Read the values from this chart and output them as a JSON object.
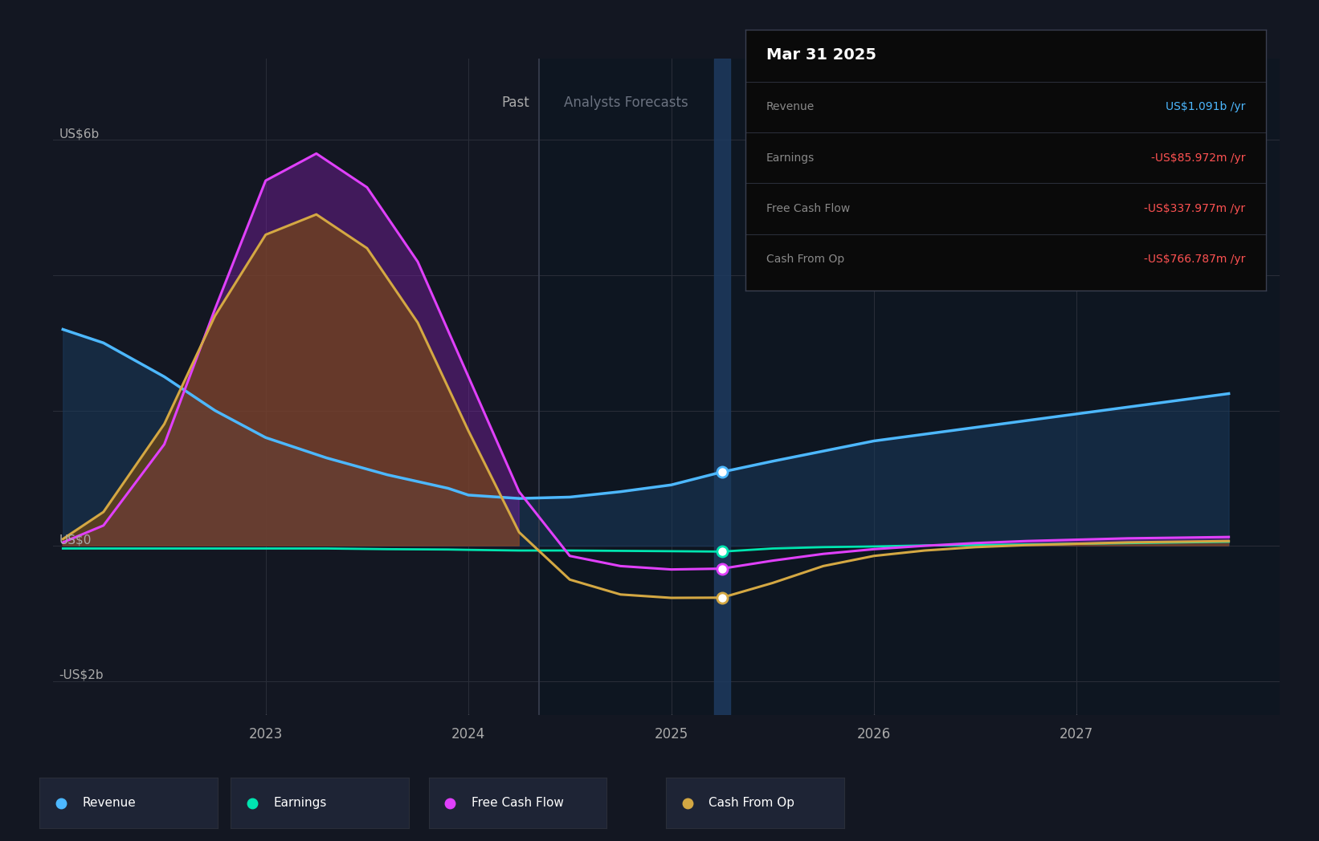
{
  "bg_color": "#131722",
  "forecast_bg_color": "#0e1621",
  "grid_color": "#2a2e39",
  "tooltip_title": "Mar 31 2025",
  "tooltip_items": [
    {
      "label": "Revenue",
      "value": "US$1.091b /yr",
      "value_color": "#4db8ff"
    },
    {
      "label": "Earnings",
      "value": "-US$85.972m /yr",
      "value_color": "#ff5252"
    },
    {
      "label": "Free Cash Flow",
      "value": "-US$337.977m /yr",
      "value_color": "#ff5252"
    },
    {
      "label": "Cash From Op",
      "value": "-US$766.787m /yr",
      "value_color": "#ff5252"
    }
  ],
  "ylabel_6b": "US$6b",
  "ylabel_0": "US$0",
  "ylabel_neg2b": "-US$2b",
  "past_label": "Past",
  "forecast_label": "Analysts Forecasts",
  "x_ticks": [
    "2023",
    "2024",
    "2025",
    "2026",
    "2027"
  ],
  "x_tick_positions": [
    2023.0,
    2024.0,
    2025.0,
    2026.0,
    2027.0
  ],
  "past_end": 2024.35,
  "marker_x": 2025.25,
  "x_min": 2021.95,
  "x_max": 2028.0,
  "y_min": -2500000000.0,
  "y_max": 7200000000.0,
  "revenue_color": "#4db8ff",
  "earnings_color": "#00e5b0",
  "fcf_color": "#e040fb",
  "cashop_color": "#d4a843",
  "revenue_fill_color": "#1a3a5c",
  "fcf_fill_color": "#7b1fa2",
  "cashop_fill_color": "#5c3a00",
  "overlap_fill_color": "#3d1a00",
  "revenue_x": [
    2022.0,
    2022.2,
    2022.5,
    2022.75,
    2023.0,
    2023.3,
    2023.6,
    2023.9,
    2024.0,
    2024.25,
    2024.5,
    2024.75,
    2025.0,
    2025.25,
    2025.5,
    2025.75,
    2026.0,
    2026.25,
    2026.5,
    2026.75,
    2027.0,
    2027.25,
    2027.5,
    2027.75
  ],
  "revenue_y": [
    3200000000.0,
    3000000000.0,
    2500000000.0,
    2000000000.0,
    1600000000.0,
    1300000000.0,
    1050000000.0,
    850000000.0,
    750000000.0,
    700000000.0,
    720000000.0,
    800000000.0,
    900000000.0,
    1091000000.0,
    1250000000.0,
    1400000000.0,
    1550000000.0,
    1650000000.0,
    1750000000.0,
    1850000000.0,
    1950000000.0,
    2050000000.0,
    2150000000.0,
    2250000000.0
  ],
  "earnings_x": [
    2022.0,
    2022.2,
    2022.5,
    2022.75,
    2023.0,
    2023.3,
    2023.6,
    2023.9,
    2024.0,
    2024.25,
    2024.5,
    2024.75,
    2025.0,
    2025.25,
    2025.5,
    2025.75,
    2026.0,
    2026.25,
    2026.5,
    2026.75,
    2027.0,
    2027.25,
    2027.5,
    2027.75
  ],
  "earnings_y": [
    -40000000.0,
    -40000000.0,
    -40000000.0,
    -40000000.0,
    -40000000.0,
    -40000000.0,
    -50000000.0,
    -55000000.0,
    -60000000.0,
    -70000000.0,
    -70000000.0,
    -75000000.0,
    -80000000.0,
    -86000000.0,
    -40000000.0,
    -20000000.0,
    -10000000.0,
    5000000.0,
    10000000.0,
    20000000.0,
    30000000.0,
    40000000.0,
    50000000.0,
    60000000.0
  ],
  "fcf_x": [
    2022.0,
    2022.2,
    2022.5,
    2022.75,
    2023.0,
    2023.25,
    2023.5,
    2023.75,
    2024.0,
    2024.25,
    2024.5,
    2024.75,
    2025.0,
    2025.25,
    2025.5,
    2025.75,
    2026.0,
    2026.25,
    2026.5,
    2026.75,
    2027.0,
    2027.25,
    2027.5,
    2027.75
  ],
  "fcf_y": [
    50000000.0,
    300000000.0,
    1500000000.0,
    3500000000.0,
    5400000000.0,
    5800000000.0,
    5300000000.0,
    4200000000.0,
    2500000000.0,
    800000000.0,
    -150000000.0,
    -300000000.0,
    -350000000.0,
    -338000000.0,
    -220000000.0,
    -120000000.0,
    -50000000.0,
    0.0,
    40000000.0,
    70000000.0,
    90000000.0,
    110000000.0,
    120000000.0,
    130000000.0
  ],
  "cashop_x": [
    2022.0,
    2022.2,
    2022.5,
    2022.75,
    2023.0,
    2023.25,
    2023.5,
    2023.75,
    2024.0,
    2024.25,
    2024.5,
    2024.75,
    2025.0,
    2025.25,
    2025.5,
    2025.75,
    2026.0,
    2026.25,
    2026.5,
    2026.75,
    2027.0,
    2027.25,
    2027.5,
    2027.75
  ],
  "cashop_y": [
    100000000.0,
    500000000.0,
    1800000000.0,
    3400000000.0,
    4600000000.0,
    4900000000.0,
    4400000000.0,
    3300000000.0,
    1700000000.0,
    200000000.0,
    -500000000.0,
    -720000000.0,
    -770000000.0,
    -767000000.0,
    -550000000.0,
    -300000000.0,
    -150000000.0,
    -70000000.0,
    -20000000.0,
    10000000.0,
    30000000.0,
    50000000.0,
    60000000.0,
    70000000.0
  ],
  "legend_items": [
    {
      "label": "Revenue",
      "color": "#4db8ff"
    },
    {
      "label": "Earnings",
      "color": "#00e5b0"
    },
    {
      "label": "Free Cash Flow",
      "color": "#e040fb"
    },
    {
      "label": "Cash From Op",
      "color": "#d4a843"
    }
  ]
}
